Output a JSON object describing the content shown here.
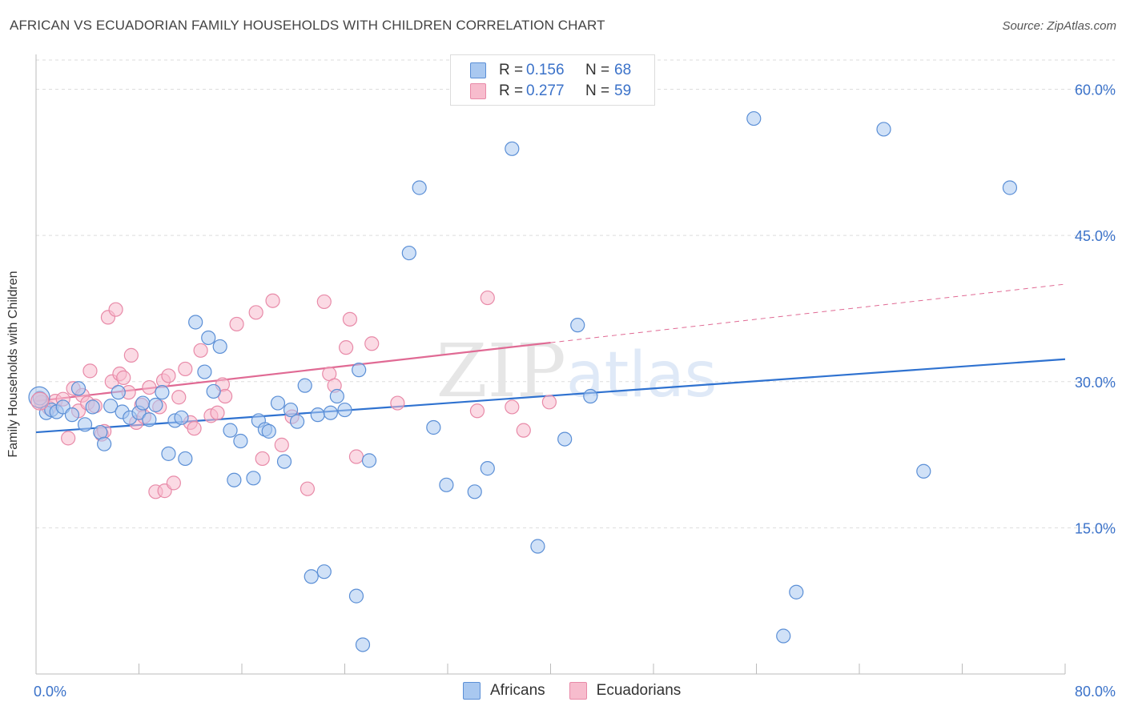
{
  "title": "AFRICAN VS ECUADORIAN FAMILY HOUSEHOLDS WITH CHILDREN CORRELATION CHART",
  "source": "Source: ZipAtlas.com",
  "colors": {
    "africans_fill": "#a9c8f0",
    "africans_stroke": "#5b8fd6",
    "africans_line": "#2f72d0",
    "ecuadorians_fill": "#f7bccd",
    "ecuadorians_stroke": "#e88aa8",
    "ecuadorians_line": "#e06a94",
    "grid": "#dddddd",
    "tick_label": "#3b72c9"
  },
  "legend": {
    "rows": [
      {
        "r_label": "R =",
        "r_value": "0.156",
        "n_label": "N =",
        "n_value": "68"
      },
      {
        "r_label": "R =",
        "r_value": "0.277",
        "n_label": "N =",
        "n_value": "59"
      }
    ]
  },
  "chart_data": {
    "type": "scatter",
    "title": "AFRICAN VS ECUADORIAN FAMILY HOUSEHOLDS WITH CHILDREN CORRELATION CHART",
    "xlabel": "",
    "ylabel": "Family Households with Children",
    "xlim": [
      0,
      80
    ],
    "ylim": [
      0,
      63
    ],
    "x_tick_labels": [
      "0.0%",
      "80.0%"
    ],
    "y_ticks": [
      15,
      30,
      45,
      60
    ],
    "y_tick_labels": [
      "15.0%",
      "30.0%",
      "45.0%",
      "60.0%"
    ],
    "watermark": "ZIPatlas",
    "series": [
      {
        "name": "Africans",
        "trend": {
          "x0": 0,
          "y0": 24.8,
          "x1": 80,
          "y1": 32.3,
          "dashed_from": 80
        },
        "points": [
          [
            0.3,
            28.3
          ],
          [
            0.8,
            26.8
          ],
          [
            1.2,
            27.1
          ],
          [
            1.6,
            26.9
          ],
          [
            2.1,
            27.4
          ],
          [
            2.8,
            26.6
          ],
          [
            3.3,
            29.3
          ],
          [
            3.8,
            25.6
          ],
          [
            4.4,
            27.4
          ],
          [
            5.0,
            24.8
          ],
          [
            5.3,
            23.6
          ],
          [
            5.8,
            27.5
          ],
          [
            6.4,
            28.9
          ],
          [
            6.7,
            26.9
          ],
          [
            7.3,
            26.3
          ],
          [
            8.0,
            26.8
          ],
          [
            8.3,
            27.8
          ],
          [
            8.8,
            26.1
          ],
          [
            9.3,
            27.6
          ],
          [
            9.8,
            28.9
          ],
          [
            10.3,
            22.6
          ],
          [
            10.8,
            26.0
          ],
          [
            11.3,
            26.3
          ],
          [
            11.6,
            22.1
          ],
          [
            12.4,
            36.1
          ],
          [
            13.1,
            31.0
          ],
          [
            13.4,
            34.5
          ],
          [
            13.8,
            29.0
          ],
          [
            14.3,
            33.6
          ],
          [
            15.1,
            25.0
          ],
          [
            15.4,
            19.9
          ],
          [
            15.9,
            23.9
          ],
          [
            16.9,
            20.1
          ],
          [
            17.3,
            26.0
          ],
          [
            17.8,
            25.1
          ],
          [
            18.1,
            24.9
          ],
          [
            18.8,
            27.8
          ],
          [
            19.3,
            21.8
          ],
          [
            19.8,
            27.1
          ],
          [
            20.3,
            25.9
          ],
          [
            20.9,
            29.6
          ],
          [
            21.4,
            10.0
          ],
          [
            21.9,
            26.6
          ],
          [
            22.4,
            10.5
          ],
          [
            22.9,
            26.8
          ],
          [
            23.4,
            28.5
          ],
          [
            24.0,
            27.1
          ],
          [
            24.9,
            8.0
          ],
          [
            25.1,
            31.2
          ],
          [
            25.4,
            3.0
          ],
          [
            25.9,
            21.9
          ],
          [
            29.0,
            43.2
          ],
          [
            29.8,
            49.9
          ],
          [
            30.9,
            25.3
          ],
          [
            31.9,
            19.4
          ],
          [
            34.1,
            18.7
          ],
          [
            35.1,
            21.1
          ],
          [
            37.0,
            53.9
          ],
          [
            39.0,
            13.1
          ],
          [
            41.1,
            24.1
          ],
          [
            42.1,
            35.8
          ],
          [
            43.1,
            28.5
          ],
          [
            55.8,
            57.0
          ],
          [
            58.1,
            3.9
          ],
          [
            59.1,
            8.4
          ],
          [
            65.9,
            55.9
          ],
          [
            69.0,
            20.8
          ],
          [
            75.7,
            49.9
          ]
        ]
      },
      {
        "name": "Ecuadorians",
        "trend": {
          "x0": 0,
          "y0": 28.0,
          "x1": 80,
          "y1": 40.0,
          "dashed_from": 40
        },
        "points": [
          [
            0.4,
            27.9
          ],
          [
            1.0,
            27.3
          ],
          [
            1.5,
            28.0
          ],
          [
            2.1,
            28.2
          ],
          [
            2.5,
            24.2
          ],
          [
            2.9,
            29.3
          ],
          [
            3.3,
            27.0
          ],
          [
            3.6,
            28.6
          ],
          [
            4.0,
            27.8
          ],
          [
            4.2,
            31.1
          ],
          [
            4.6,
            27.5
          ],
          [
            5.1,
            24.6
          ],
          [
            5.3,
            24.9
          ],
          [
            5.6,
            36.6
          ],
          [
            5.9,
            30.0
          ],
          [
            6.2,
            37.4
          ],
          [
            6.5,
            30.8
          ],
          [
            6.8,
            30.4
          ],
          [
            7.2,
            28.9
          ],
          [
            7.4,
            32.7
          ],
          [
            7.8,
            25.8
          ],
          [
            8.2,
            27.6
          ],
          [
            8.4,
            26.4
          ],
          [
            8.8,
            29.4
          ],
          [
            9.3,
            18.7
          ],
          [
            9.6,
            27.4
          ],
          [
            9.9,
            30.1
          ],
          [
            10.0,
            18.8
          ],
          [
            10.3,
            30.6
          ],
          [
            10.7,
            19.6
          ],
          [
            11.1,
            28.4
          ],
          [
            11.6,
            31.3
          ],
          [
            12.0,
            25.8
          ],
          [
            12.3,
            25.2
          ],
          [
            12.8,
            33.2
          ],
          [
            13.6,
            26.5
          ],
          [
            14.1,
            26.8
          ],
          [
            14.5,
            29.7
          ],
          [
            14.7,
            28.5
          ],
          [
            15.6,
            35.9
          ],
          [
            17.1,
            37.1
          ],
          [
            17.6,
            22.1
          ],
          [
            18.4,
            38.3
          ],
          [
            19.1,
            23.5
          ],
          [
            19.9,
            26.4
          ],
          [
            21.1,
            19.0
          ],
          [
            22.4,
            38.2
          ],
          [
            22.8,
            30.8
          ],
          [
            23.2,
            29.6
          ],
          [
            24.1,
            33.5
          ],
          [
            24.4,
            36.4
          ],
          [
            24.9,
            22.3
          ],
          [
            26.1,
            33.9
          ],
          [
            28.1,
            27.8
          ],
          [
            34.3,
            27.0
          ],
          [
            35.1,
            38.6
          ],
          [
            37.0,
            27.4
          ],
          [
            37.9,
            25.0
          ],
          [
            39.9,
            27.9
          ]
        ]
      }
    ]
  }
}
